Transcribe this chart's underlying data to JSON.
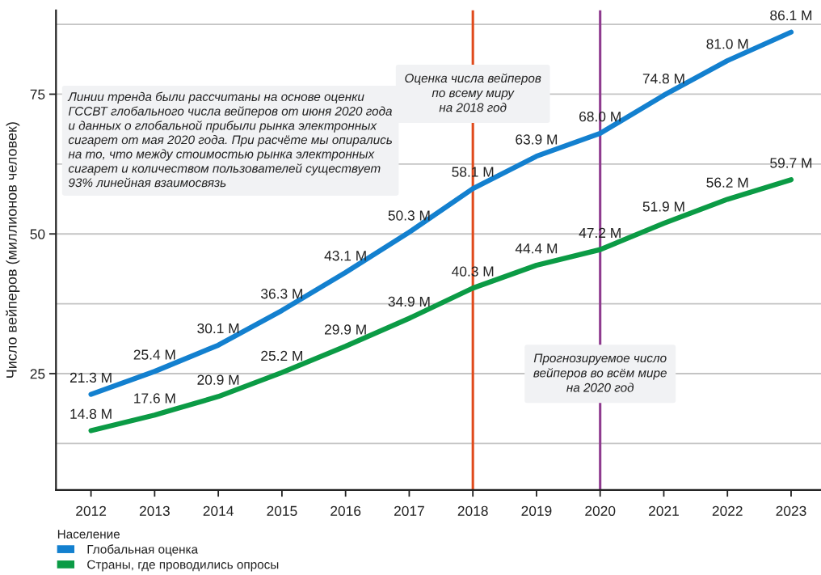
{
  "chart_data": {
    "type": "line",
    "ylabel": "Число вейперов (миллионов человек)",
    "x": [
      2012,
      2013,
      2014,
      2015,
      2016,
      2017,
      2018,
      2019,
      2020,
      2021,
      2022,
      2023
    ],
    "series": [
      {
        "name": "Глобальная оценка",
        "color": "#1380cf",
        "values": [
          21.3,
          25.4,
          30.1,
          36.3,
          43.1,
          50.3,
          58.1,
          63.9,
          68.0,
          74.8,
          81.0,
          86.1
        ],
        "value_labels": [
          "21.3 M",
          "25.4 M",
          "30.1 M",
          "36.3 M",
          "43.1 M",
          "50.3 M",
          "58.1 M",
          "63.9 M",
          "68.0 M",
          "74.8 M",
          "81.0 M",
          "86.1 M"
        ]
      },
      {
        "name": "Страны, где проводились опросы",
        "color": "#0b9b45",
        "values": [
          14.8,
          17.6,
          20.9,
          25.2,
          29.9,
          34.9,
          40.3,
          44.4,
          47.2,
          51.9,
          56.2,
          59.7
        ],
        "value_labels": [
          "14.8 M",
          "17.6 M",
          "20.9 M",
          "25.2 M",
          "29.9 M",
          "34.9 M",
          "40.3 M",
          "44.4 M",
          "47.2 M",
          "51.9 M",
          "56.2 M",
          "59.7 M"
        ]
      }
    ],
    "xlim": [
      2011.45,
      2023.47
    ],
    "xticks": [
      2012,
      2013,
      2014,
      2015,
      2016,
      2017,
      2018,
      2019,
      2020,
      2021,
      2022,
      2023
    ],
    "ylim": [
      4.2,
      90
    ],
    "yticks": [
      {
        "value": 12.5,
        "label": null
      },
      25,
      {
        "value": 37.5,
        "label": null
      },
      50,
      {
        "value": 62.5,
        "label": null
      },
      75,
      {
        "value": 87.5,
        "label": null
      }
    ],
    "grid": "y",
    "legend": "bottom left",
    "legend_title": "Население",
    "line_style": "solid",
    "ref_lines": [
      {
        "axis": "x",
        "value": 2018,
        "label": "Оценка числа вейперов\nпо всему миру\nна 2018 год",
        "color": "#e04a1c",
        "line_style": "solid"
      },
      {
        "axis": "x",
        "value": 2020,
        "label": "Прогнозируемое число\nвейперов во всём мире\nна 2020 год",
        "color": "#8e3a8e",
        "line_style": "solid"
      }
    ],
    "annotations": [
      "Линии тренда были рассчитаны на основе оценки\nГССВТ глобального числа вейперов от июня 2020 года\nи данных о глобальной прибыли рынка электронных\nсигарет от мая 2020 года. При расчёте мы опирались\nна то, что между стоимостью рынка электронных\nсигарет и количеством пользователей существует\n93% линейная взаимосвязь"
    ]
  }
}
